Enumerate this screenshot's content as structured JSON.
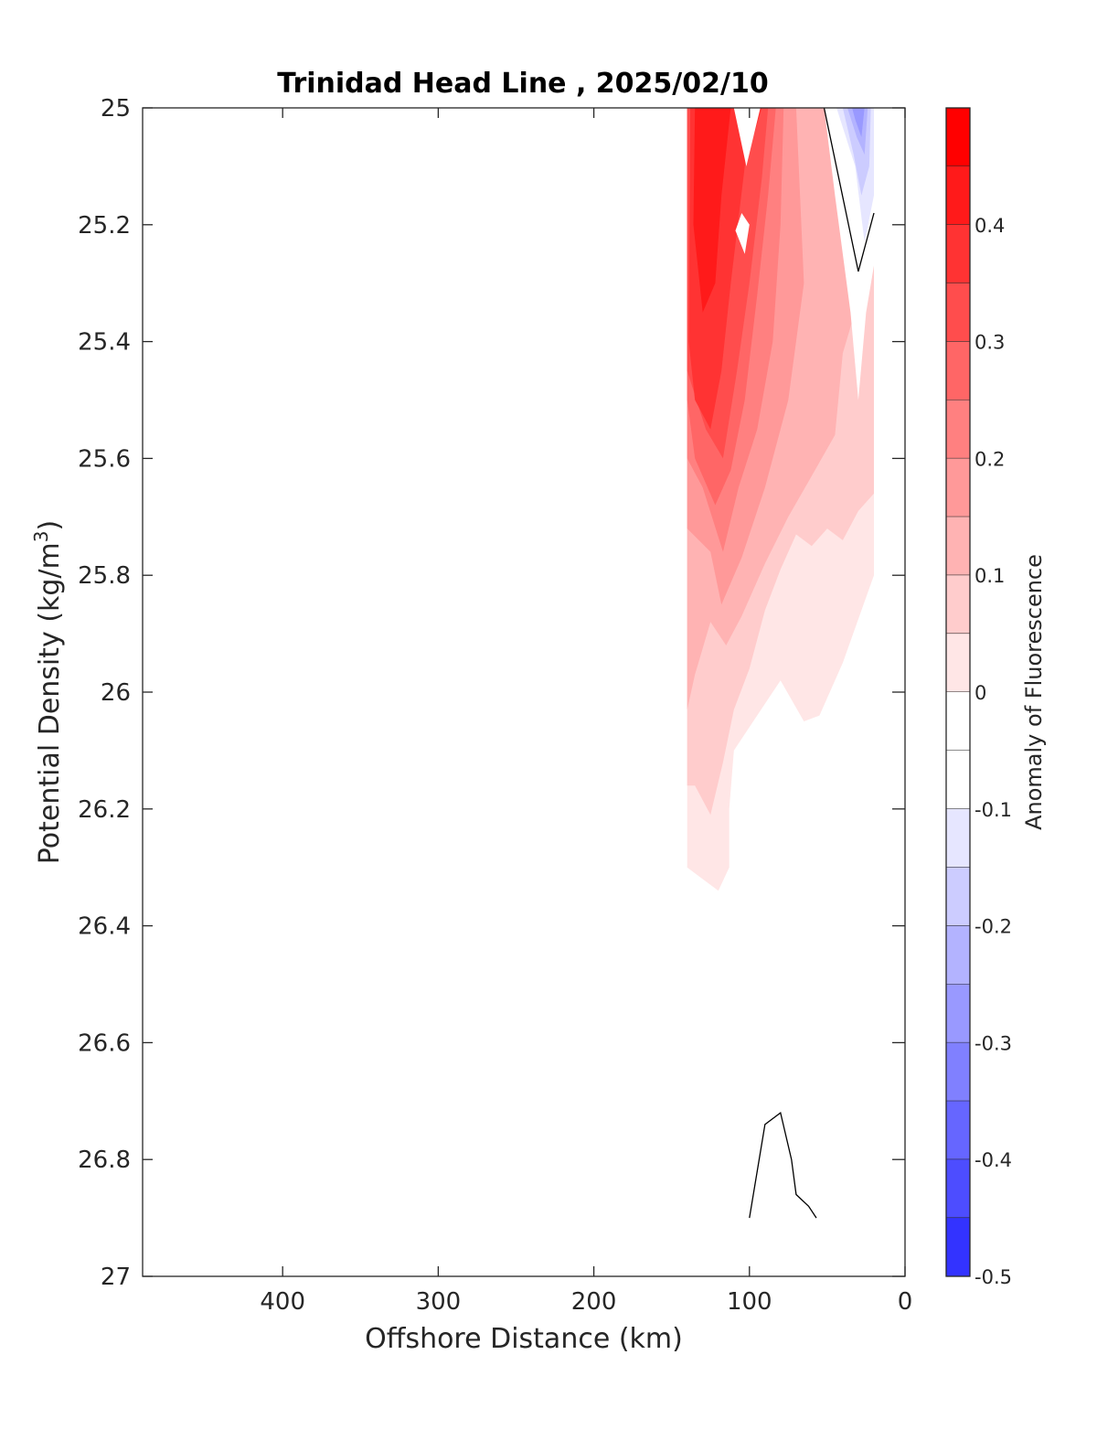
{
  "chart_data": {
    "type": "heatmap",
    "title": "Trinidad Head Line , 2025/02/10",
    "xlabel": "Offshore Distance (km)",
    "ylabel_main": "Potential Density (kg/m",
    "ylabel_sup": "3",
    "ylabel_close": ")",
    "colorbar_label": "Anomaly of Fluorescence",
    "xlim": [
      490,
      0
    ],
    "ylim": [
      25,
      27
    ],
    "x_reversed": true,
    "y_reversed": true,
    "grid": false,
    "xticks": [
      400,
      300,
      200,
      100,
      0
    ],
    "xtick_labels": [
      "400",
      "300",
      "200",
      "100",
      "0"
    ],
    "yticks": [
      25,
      25.2,
      25.4,
      25.6,
      25.8,
      26,
      26.2,
      26.4,
      26.6,
      26.8,
      27
    ],
    "ytick_labels": [
      "25",
      "25.2",
      "25.4",
      "25.6",
      "25.8",
      "26",
      "26.2",
      "26.4",
      "26.6",
      "26.8",
      "27"
    ],
    "colorbar": {
      "range": [
        -0.5,
        0.5
      ],
      "ticks": [
        0.4,
        0.3,
        0.2,
        0.1,
        0,
        -0.1,
        -0.2,
        -0.3,
        -0.4,
        -0.5
      ],
      "tick_labels": [
        "0.4",
        "0.3",
        "0.2",
        "0.1",
        "0",
        "-0.1",
        "-0.2",
        "-0.3",
        "-0.4",
        "-0.5"
      ],
      "levels": [
        {
          "lo": 0.45,
          "hi": 0.5,
          "color": "#ff0000"
        },
        {
          "lo": 0.4,
          "hi": 0.45,
          "color": "#ff1a1a"
        },
        {
          "lo": 0.35,
          "hi": 0.4,
          "color": "#ff3333"
        },
        {
          "lo": 0.3,
          "hi": 0.35,
          "color": "#ff4d4d"
        },
        {
          "lo": 0.25,
          "hi": 0.3,
          "color": "#ff6666"
        },
        {
          "lo": 0.2,
          "hi": 0.25,
          "color": "#ff8080"
        },
        {
          "lo": 0.15,
          "hi": 0.2,
          "color": "#ff9999"
        },
        {
          "lo": 0.1,
          "hi": 0.15,
          "color": "#ffb3b3"
        },
        {
          "lo": 0.05,
          "hi": 0.1,
          "color": "#ffcccc"
        },
        {
          "lo": 0.0,
          "hi": 0.05,
          "color": "#ffe6e6"
        },
        {
          "lo": -0.05,
          "hi": 0.0,
          "color": "#ffffff"
        },
        {
          "lo": -0.1,
          "hi": -0.05,
          "color": "#ffffff"
        },
        {
          "lo": -0.15,
          "hi": -0.1,
          "color": "#e6e6ff"
        },
        {
          "lo": -0.2,
          "hi": -0.15,
          "color": "#ccccff"
        },
        {
          "lo": -0.25,
          "hi": -0.2,
          "color": "#b3b3ff"
        },
        {
          "lo": -0.3,
          "hi": -0.25,
          "color": "#9999ff"
        },
        {
          "lo": -0.35,
          "hi": -0.3,
          "color": "#8080ff"
        },
        {
          "lo": -0.4,
          "hi": -0.35,
          "color": "#6666ff"
        },
        {
          "lo": -0.45,
          "hi": -0.4,
          "color": "#4d4dff"
        },
        {
          "lo": -0.5,
          "hi": -0.45,
          "color": "#3333ff"
        }
      ]
    },
    "contour_regions": [
      {
        "value": 0.02,
        "color": "#ffe6e6",
        "points": [
          [
            140,
            25
          ],
          [
            20,
            25
          ],
          [
            20,
            25.8
          ],
          [
            40,
            25.95
          ],
          [
            55,
            26.04
          ],
          [
            65,
            26.05
          ],
          [
            80,
            25.98
          ],
          [
            100,
            26.06
          ],
          [
            110,
            26.1
          ],
          [
            113,
            26.2
          ],
          [
            113,
            26.3
          ],
          [
            120,
            26.34
          ],
          [
            130,
            26.32
          ],
          [
            140,
            26.3
          ]
        ]
      },
      {
        "value": 0.07,
        "color": "#ffcccc",
        "points": [
          [
            140,
            25
          ],
          [
            20,
            25
          ],
          [
            20,
            25.66
          ],
          [
            30,
            25.69
          ],
          [
            40,
            25.74
          ],
          [
            50,
            25.72
          ],
          [
            60,
            25.75
          ],
          [
            70,
            25.73
          ],
          [
            80,
            25.79
          ],
          [
            90,
            25.86
          ],
          [
            100,
            25.96
          ],
          [
            110,
            26.03
          ],
          [
            117,
            26.12
          ],
          [
            125,
            26.21
          ],
          [
            135,
            26.16
          ],
          [
            140,
            26.16
          ]
        ]
      },
      {
        "value": 0.12,
        "color": "#ffb3b3",
        "points": [
          [
            140,
            25
          ],
          [
            20,
            25
          ],
          [
            20,
            25.26
          ],
          [
            30,
            25.33
          ],
          [
            40,
            25.42
          ],
          [
            45,
            25.56
          ],
          [
            60,
            25.63
          ],
          [
            75,
            25.7
          ],
          [
            90,
            25.78
          ],
          [
            105,
            25.87
          ],
          [
            115,
            25.92
          ],
          [
            125,
            25.88
          ],
          [
            135,
            25.97
          ],
          [
            140,
            26.03
          ]
        ]
      },
      {
        "value": 0.17,
        "color": "#ff9999",
        "points": [
          [
            140,
            25
          ],
          [
            70,
            25
          ],
          [
            65,
            25.3
          ],
          [
            75,
            25.5
          ],
          [
            90,
            25.65
          ],
          [
            105,
            25.77
          ],
          [
            118,
            25.85
          ],
          [
            125,
            25.76
          ],
          [
            140,
            25.72
          ]
        ]
      },
      {
        "value": 0.22,
        "color": "#ff8080",
        "points": [
          [
            140,
            25
          ],
          [
            78,
            25
          ],
          [
            80,
            25.2
          ],
          [
            85,
            25.4
          ],
          [
            95,
            25.55
          ],
          [
            107,
            25.65
          ],
          [
            117,
            25.76
          ],
          [
            130,
            25.65
          ],
          [
            140,
            25.6
          ]
        ]
      },
      {
        "value": 0.27,
        "color": "#ff6666",
        "points": [
          [
            140,
            25
          ],
          [
            83,
            25
          ],
          [
            88,
            25.15
          ],
          [
            95,
            25.32
          ],
          [
            103,
            25.5
          ],
          [
            112,
            25.62
          ],
          [
            122,
            25.68
          ],
          [
            135,
            25.6
          ],
          [
            140,
            25.5
          ]
        ]
      },
      {
        "value": 0.32,
        "color": "#ff4d4d",
        "points": [
          [
            140,
            25
          ],
          [
            88,
            25
          ],
          [
            92,
            25.12
          ],
          [
            100,
            25.3
          ],
          [
            108,
            25.45
          ],
          [
            117,
            25.6
          ],
          [
            128,
            25.55
          ],
          [
            140,
            25.45
          ]
        ]
      },
      {
        "value": 0.37,
        "color": "#ff3333",
        "points": [
          [
            138,
            25
          ],
          [
            92,
            25
          ],
          [
            103,
            25.1
          ],
          [
            112,
            25.3
          ],
          [
            118,
            25.45
          ],
          [
            125,
            25.55
          ],
          [
            135,
            25.5
          ],
          [
            139,
            25.4
          ]
        ]
      },
      {
        "value": 0.42,
        "color": "#ff1a1a",
        "points": [
          [
            135,
            25
          ],
          [
            112,
            25
          ],
          [
            118,
            25.15
          ],
          [
            122,
            25.3
          ],
          [
            130,
            25.35
          ],
          [
            136,
            25.2
          ]
        ]
      },
      {
        "value": 0.0,
        "color": "#ffffff",
        "points": [
          [
            110,
            25
          ],
          [
            93,
            25
          ],
          [
            102,
            25.1
          ]
        ]
      },
      {
        "value": 0.0,
        "color": "#ffffff",
        "points": [
          [
            105,
            25.18
          ],
          [
            100,
            25.2
          ],
          [
            103,
            25.25
          ],
          [
            109,
            25.21
          ]
        ]
      },
      {
        "value": 0.0,
        "color": "#ffffff",
        "points": [
          [
            52,
            25
          ],
          [
            20,
            25
          ],
          [
            20,
            25.27
          ],
          [
            25,
            25.35
          ],
          [
            30,
            25.5
          ],
          [
            35,
            25.35
          ],
          [
            45,
            25.15
          ]
        ]
      },
      {
        "value": -0.12,
        "color": "#e6e6ff",
        "points": [
          [
            44,
            25
          ],
          [
            20,
            25
          ],
          [
            20,
            25.15
          ],
          [
            26,
            25.23
          ],
          [
            32,
            25.1
          ]
        ]
      },
      {
        "value": -0.17,
        "color": "#ccccff",
        "points": [
          [
            40,
            25
          ],
          [
            22,
            25
          ],
          [
            23,
            25.1
          ],
          [
            28,
            25.15
          ],
          [
            33,
            25.08
          ]
        ]
      },
      {
        "value": -0.22,
        "color": "#b3b3ff",
        "points": [
          [
            37,
            25
          ],
          [
            24,
            25
          ],
          [
            26,
            25.08
          ],
          [
            31,
            25.05
          ]
        ]
      },
      {
        "value": -0.27,
        "color": "#9999ff",
        "points": [
          [
            34,
            25
          ],
          [
            26,
            25
          ],
          [
            28,
            25.05
          ],
          [
            32,
            25.02
          ]
        ]
      }
    ],
    "contour_lines": [
      {
        "value": 0,
        "points": [
          [
            52,
            25
          ],
          [
            30,
            25.28
          ],
          [
            20,
            25.18
          ]
        ]
      },
      {
        "value": 0,
        "points": [
          [
            100,
            26.9
          ],
          [
            90,
            26.74
          ],
          [
            80,
            26.72
          ],
          [
            73,
            26.8
          ],
          [
            70,
            26.86
          ],
          [
            62,
            26.88
          ],
          [
            57,
            26.9
          ]
        ]
      }
    ]
  }
}
